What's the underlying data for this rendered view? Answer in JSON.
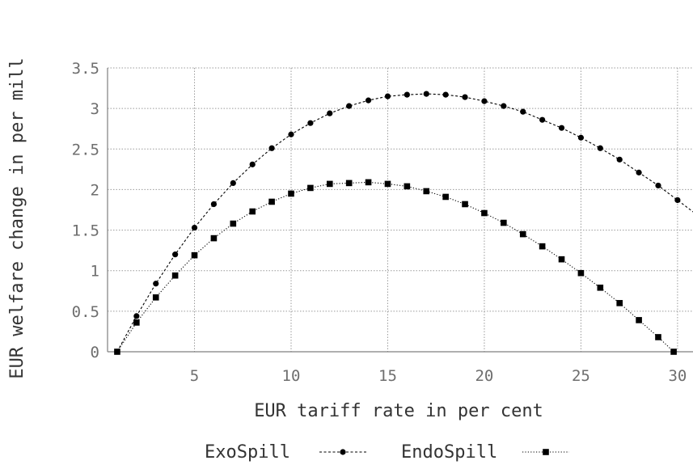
{
  "chart_data": {
    "type": "line",
    "title": "",
    "xlabel": "EUR tariff rate in per cent",
    "ylabel": "EUR welfare change in per mill",
    "xlim": [
      0.5,
      30.8
    ],
    "ylim": [
      0,
      3.5
    ],
    "x_ticks": [
      5,
      10,
      15,
      20,
      25,
      30
    ],
    "y_ticks": [
      0,
      0.5,
      1,
      1.5,
      2,
      2.5,
      3,
      3.5
    ],
    "x_tick_labels": [
      "5",
      "10",
      "15",
      "20",
      "25",
      "30"
    ],
    "y_tick_labels": [
      "0",
      "0.5",
      "1",
      "1.5",
      "2",
      "2.5",
      "3",
      "3.5"
    ],
    "grid": true,
    "legend_position": "bottom",
    "colors": {
      "line": "#000000",
      "grid": "#9a9a9a",
      "axis": "#7f7f7f"
    },
    "series": [
      {
        "name": "ExoSpill",
        "marker": "circle",
        "line_style": "dashed",
        "x": [
          1,
          2,
          3,
          4,
          5,
          6,
          7,
          8,
          9,
          10,
          11,
          12,
          13,
          14,
          15,
          16,
          17,
          18,
          19,
          20,
          21,
          22,
          23,
          24,
          25,
          26,
          27,
          28,
          29,
          30,
          31
        ],
        "values": [
          0,
          0.44,
          0.84,
          1.2,
          1.53,
          1.82,
          2.08,
          2.31,
          2.51,
          2.68,
          2.82,
          2.94,
          3.03,
          3.1,
          3.15,
          3.17,
          3.18,
          3.17,
          3.14,
          3.09,
          3.03,
          2.96,
          2.86,
          2.76,
          2.64,
          2.51,
          2.37,
          2.21,
          2.05,
          1.87,
          1.69
        ]
      },
      {
        "name": "EndoSpill",
        "marker": "square",
        "line_style": "dotted",
        "x": [
          1,
          2,
          3,
          4,
          5,
          6,
          7,
          8,
          9,
          10,
          11,
          12,
          13,
          14,
          15,
          16,
          17,
          18,
          19,
          20,
          21,
          22,
          23,
          24,
          25,
          26,
          27,
          28,
          29,
          29.8
        ],
        "values": [
          0,
          0.36,
          0.67,
          0.94,
          1.19,
          1.4,
          1.58,
          1.73,
          1.85,
          1.95,
          2.02,
          2.07,
          2.08,
          2.09,
          2.07,
          2.04,
          1.98,
          1.91,
          1.82,
          1.71,
          1.59,
          1.45,
          1.3,
          1.14,
          0.97,
          0.79,
          0.6,
          0.39,
          0.18,
          0
        ]
      }
    ]
  }
}
